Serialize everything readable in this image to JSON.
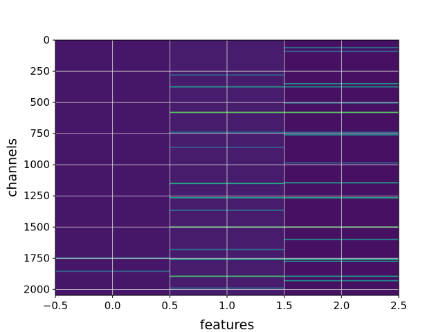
{
  "chart_data": {
    "type": "heatmap",
    "title": "",
    "xlabel": "features",
    "ylabel": "channels",
    "xlim": [
      -0.5,
      2.5
    ],
    "ylim": [
      2048,
      0
    ],
    "y_axis_inverted": true,
    "grid": true,
    "grid_color": "#d9d9d9",
    "colormap": "viridis",
    "xticks": [
      -0.5,
      0.0,
      0.5,
      1.0,
      1.5,
      2.0,
      2.5
    ],
    "xtick_labels": [
      "−0.5",
      "0.0",
      "0.5",
      "1.0",
      "1.5",
      "2.0",
      "2.5"
    ],
    "yticks": [
      0,
      250,
      500,
      750,
      1000,
      1250,
      1500,
      1750,
      2000
    ],
    "ytick_labels": [
      "0",
      "250",
      "500",
      "750",
      "1000",
      "1250",
      "1500",
      "1750",
      "2000"
    ],
    "n_channels": 2048,
    "n_features": 3,
    "columns": [
      {
        "feature": 0,
        "base_value": 0.08,
        "bright_channels": [
          {
            "channel": 1750,
            "value": 0.45
          },
          {
            "channel": 1855,
            "value": 0.3
          }
        ]
      },
      {
        "feature": 1,
        "base_value": 0.1,
        "bright_channels": [
          {
            "channel": 280,
            "value": 0.35
          },
          {
            "channel": 375,
            "value": 0.55
          },
          {
            "channel": 580,
            "value": 0.75
          },
          {
            "channel": 740,
            "value": 0.35
          },
          {
            "channel": 860,
            "value": 0.3
          },
          {
            "channel": 1150,
            "value": 0.6
          },
          {
            "channel": 1265,
            "value": 0.55
          },
          {
            "channel": 1365,
            "value": 0.35
          },
          {
            "channel": 1500,
            "value": 0.75
          },
          {
            "channel": 1680,
            "value": 0.35
          },
          {
            "channel": 1760,
            "value": 0.55
          },
          {
            "channel": 1895,
            "value": 0.7
          },
          {
            "channel": 1990,
            "value": 0.35
          }
        ]
      },
      {
        "feature": 2,
        "base_value": 0.06,
        "bright_channels": [
          {
            "channel": 60,
            "value": 0.35
          },
          {
            "channel": 90,
            "value": 0.3
          },
          {
            "channel": 350,
            "value": 0.55
          },
          {
            "channel": 375,
            "value": 0.5
          },
          {
            "channel": 505,
            "value": 0.35
          },
          {
            "channel": 580,
            "value": 0.75
          },
          {
            "channel": 740,
            "value": 0.35
          },
          {
            "channel": 760,
            "value": 0.45
          },
          {
            "channel": 985,
            "value": 0.3
          },
          {
            "channel": 1145,
            "value": 0.55
          },
          {
            "channel": 1265,
            "value": 0.6
          },
          {
            "channel": 1500,
            "value": 0.75
          },
          {
            "channel": 1600,
            "value": 0.45
          },
          {
            "channel": 1760,
            "value": 0.6
          },
          {
            "channel": 1775,
            "value": 0.5
          },
          {
            "channel": 1895,
            "value": 0.55
          },
          {
            "channel": 1930,
            "value": 0.45
          }
        ]
      }
    ]
  }
}
